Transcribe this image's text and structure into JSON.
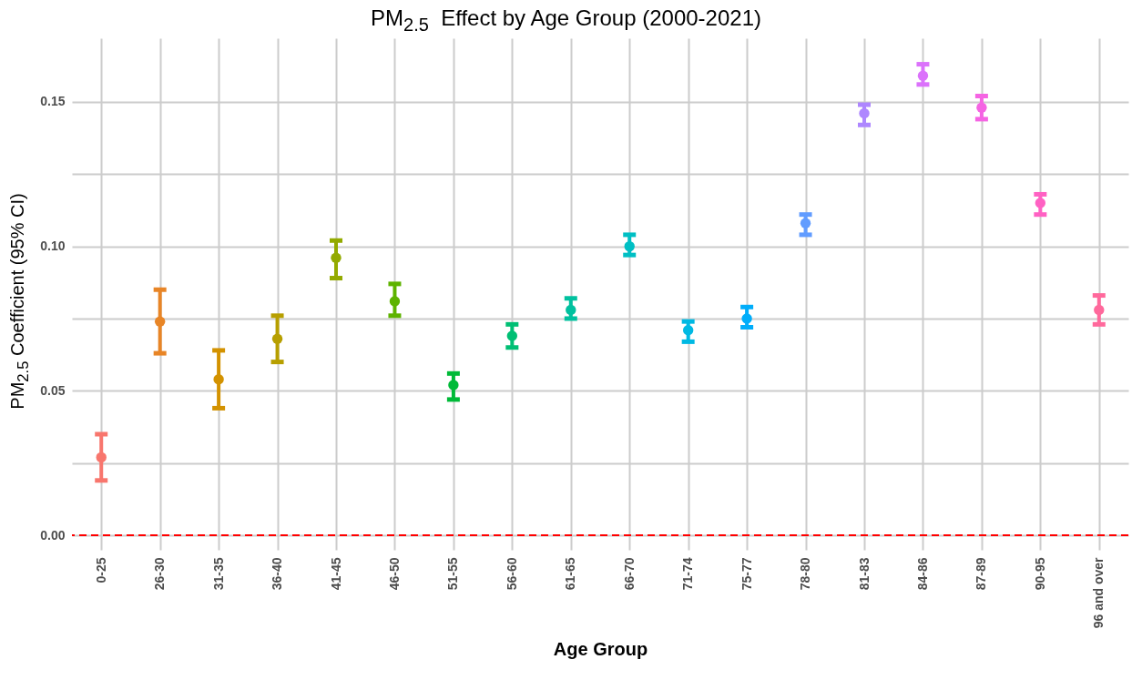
{
  "chart_data": {
    "type": "scatter",
    "title": "PM$_{2.5}$  Effect by Age Group (2000-2021)",
    "xlabel": "Age Group",
    "ylabel": "PM$_{2.5}$ Coefficient (95% CI)",
    "categories": [
      "0-25",
      "26-30",
      "31-35",
      "36-40",
      "41-45",
      "46-50",
      "51-55",
      "56-60",
      "61-65",
      "66-70",
      "71-74",
      "75-77",
      "78-80",
      "81-83",
      "84-86",
      "87-89",
      "90-95",
      "96 and over"
    ],
    "values": [
      0.027,
      0.074,
      0.054,
      0.068,
      0.096,
      0.081,
      0.052,
      0.069,
      0.078,
      0.1,
      0.071,
      0.075,
      0.108,
      0.146,
      0.159,
      0.148,
      0.115,
      0.078
    ],
    "errors": [
      [
        0.019,
        0.035
      ],
      [
        0.063,
        0.085
      ],
      [
        0.044,
        0.064
      ],
      [
        0.06,
        0.076
      ],
      [
        0.089,
        0.102
      ],
      [
        0.076,
        0.087
      ],
      [
        0.047,
        0.056
      ],
      [
        0.065,
        0.073
      ],
      [
        0.075,
        0.082
      ],
      [
        0.097,
        0.104
      ],
      [
        0.067,
        0.074
      ],
      [
        0.072,
        0.079
      ],
      [
        0.104,
        0.111
      ],
      [
        0.142,
        0.149
      ],
      [
        0.156,
        0.163
      ],
      [
        0.144,
        0.152
      ],
      [
        0.111,
        0.118
      ],
      [
        0.073,
        0.083
      ]
    ],
    "colors": [
      "#F8766D",
      "#E88526",
      "#D39200",
      "#B79F00",
      "#93AA00",
      "#5EB300",
      "#00BA38",
      "#00BF74",
      "#00C19F",
      "#00BFC4",
      "#00B9E3",
      "#00ADFA",
      "#619CFF",
      "#AE87FF",
      "#DB72FB",
      "#F564E3",
      "#FF61C3",
      "#FF699C"
    ],
    "ylim": [
      -0.005,
      0.172
    ],
    "yticks": [
      {
        "value": 0,
        "label": "0.00"
      },
      {
        "value": 0.025,
        "label": null
      },
      {
        "value": 0.05,
        "label": "0.05"
      },
      {
        "value": 0.075,
        "label": null
      },
      {
        "value": 0.1,
        "label": "0.10"
      },
      {
        "value": 0.125,
        "label": null
      },
      {
        "value": 0.15,
        "label": "0.15"
      }
    ],
    "ref_lines": [
      {
        "axis": "y",
        "value": 0,
        "color": "#ff0000",
        "line_style": "dashed"
      }
    ],
    "grid": true,
    "marker": "circle"
  }
}
